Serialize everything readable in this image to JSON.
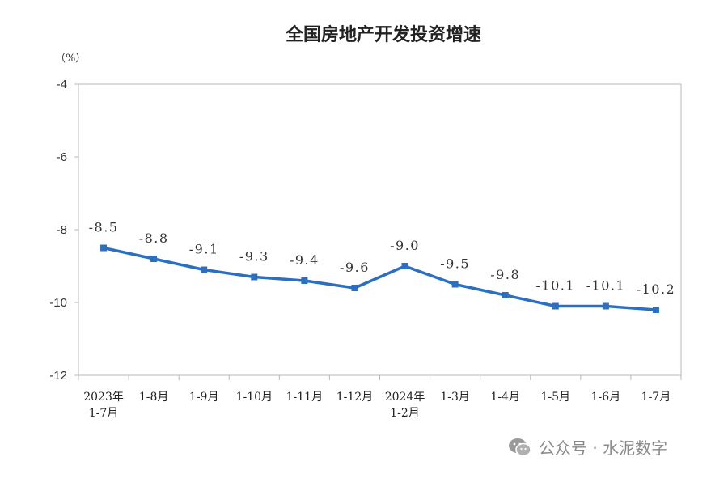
{
  "chart_data": {
    "type": "line",
    "title": "全国房地产开发投资增速",
    "ylabel": "（%）",
    "xlabel": "",
    "ylim": [
      -12,
      -4
    ],
    "yticks": [
      -4,
      -6,
      -8,
      -10,
      -12
    ],
    "categories": [
      "2023年\n1-7月",
      "1-8月",
      "1-9月",
      "1-10月",
      "1-11月",
      "1-12月",
      "2024年\n1-2月",
      "1-3月",
      "1-4月",
      "1-5月",
      "1-6月",
      "1-7月"
    ],
    "series": [
      {
        "values": [
          -8.5,
          -8.8,
          -9.1,
          -9.3,
          -9.4,
          -9.6,
          -9.0,
          -9.5,
          -9.8,
          -10.1,
          -10.1,
          -10.2
        ],
        "labels": [
          "-8.5",
          "-8.8",
          "-9.1",
          "-9.3",
          "-9.4",
          "-9.6",
          "-9.0",
          "-9.5",
          "-9.8",
          "-10.1",
          "-10.1",
          "-10.2"
        ],
        "color": "#2b6fc2"
      }
    ],
    "grid": false,
    "frame_color": "#b8b8b8"
  },
  "watermark": {
    "text": "公众号 · 水泥数字",
    "icon": "wechat-icon"
  }
}
